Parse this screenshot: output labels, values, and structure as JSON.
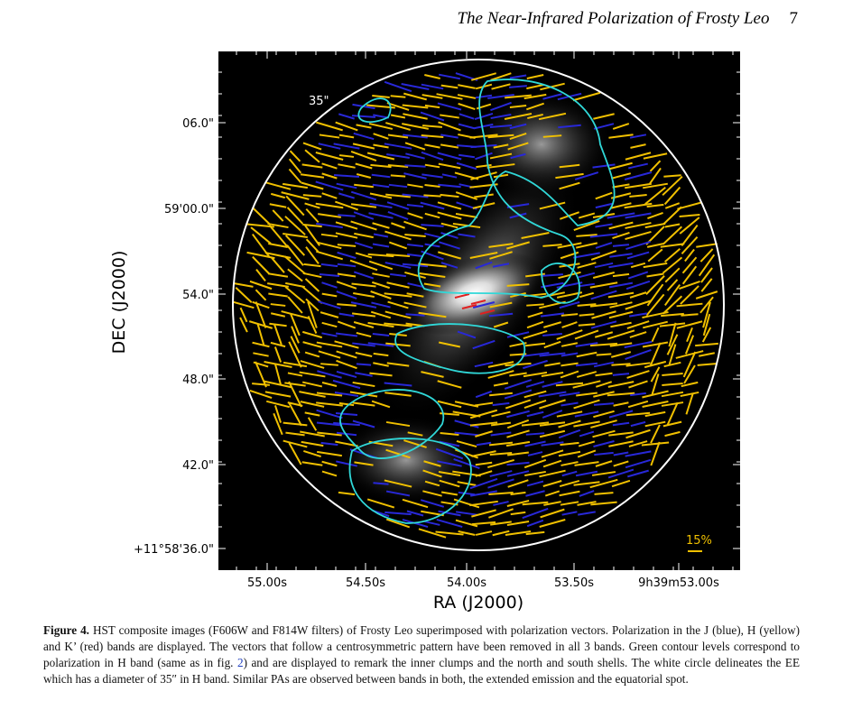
{
  "header": {
    "title": "The Near-Infrared Polarization of Frosty Leo",
    "page": "7"
  },
  "figure": {
    "circle_label": "35\"",
    "scale_label": "15%",
    "y_axis_label": "DEC (J2000)",
    "x_axis_label": "RA (J2000)",
    "y_ticks": [
      "06.0\"",
      "59'00.0\"",
      "54.0\"",
      "48.0\"",
      "42.0\"",
      "+11°58'36.0\""
    ],
    "x_ticks": [
      "55.00s",
      "54.50s",
      "54.00s",
      "53.50s",
      "9h39m53.00s"
    ]
  },
  "caption": {
    "label": "Figure 4.",
    "text_before": "HST composite images (F606W and F814W filters) of Frosty Leo superimposed with polarization vectors. Polarization in the J (blue), H (yellow) and K’ (red) bands are displayed. The vectors that follow a centrosymmetric pattern have been removed in all 3 bands. Green contour levels correspond to polarization in H band (same as in fig.",
    "link": "2",
    "text_after": ") and are displayed to remark the inner clumps and the north and south shells. The white circle delineates the EE which has a diameter of 35″ in H band. Similar PAs are observed between bands in both, the extended emission and the equatorial spot."
  }
}
